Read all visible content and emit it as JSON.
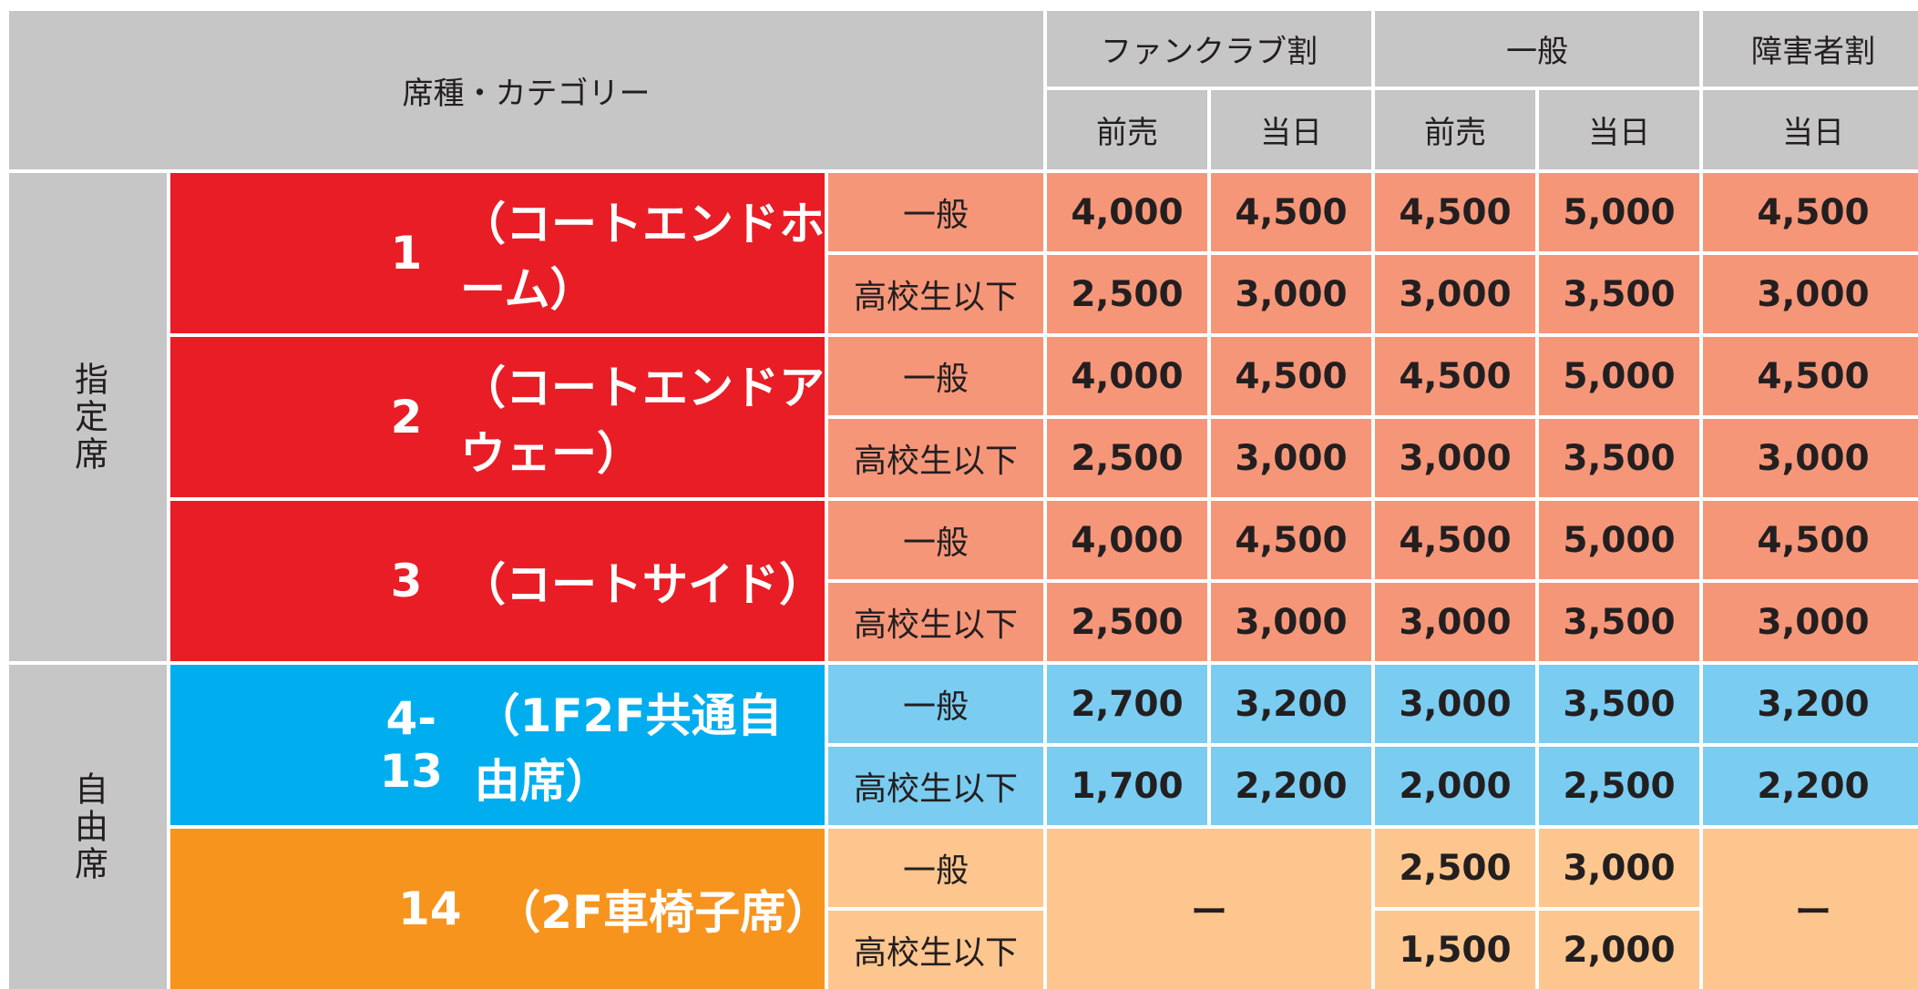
{
  "header": {
    "category": "席種・カテゴリー",
    "groups": {
      "fanclub": "ファンクラブ割",
      "general": "一般",
      "disability": "障害者割"
    },
    "sub": {
      "fc_advance": "前売",
      "fc_day": "当日",
      "gen_advance": "前売",
      "gen_day": "当日",
      "dis_day": "当日"
    }
  },
  "sections": {
    "reserved": "指定席",
    "unreserved": "自由席"
  },
  "categories": [
    {
      "num": "1",
      "label": "（コートエンドホーム）",
      "color": "#e91d25"
    },
    {
      "num": "2",
      "label": "（コートエンドアウェー）",
      "color": "#e91d25"
    },
    {
      "num": "3",
      "label": "（コートサイド）",
      "color": "#e91d25"
    },
    {
      "num": "4-13",
      "label": "（1F2F共通自由席）",
      "color": "#00aeef"
    },
    {
      "num": "14",
      "label": "（2F車椅子席）",
      "color": "#f7941d"
    }
  ],
  "sub_labels": {
    "adult": "一般",
    "student": "高校生以下"
  },
  "prices": [
    {
      "adult": [
        "4,000",
        "4,500",
        "4,500",
        "5,000",
        "4,500"
      ],
      "student": [
        "2,500",
        "3,000",
        "3,000",
        "3,500",
        "3,000"
      ]
    },
    {
      "adult": [
        "4,000",
        "4,500",
        "4,500",
        "5,000",
        "4,500"
      ],
      "student": [
        "2,500",
        "3,000",
        "3,000",
        "3,500",
        "3,000"
      ]
    },
    {
      "adult": [
        "4,000",
        "4,500",
        "4,500",
        "5,000",
        "4,500"
      ],
      "student": [
        "2,500",
        "3,000",
        "3,000",
        "3,500",
        "3,000"
      ]
    },
    {
      "adult": [
        "2,700",
        "3,200",
        "3,000",
        "3,500",
        "3,200"
      ],
      "student": [
        "1,700",
        "2,200",
        "2,000",
        "2,500",
        "2,200"
      ]
    },
    {
      "adult": [
        "",
        "",
        "2,500",
        "3,000",
        ""
      ],
      "student": [
        "",
        "",
        "1,500",
        "2,000",
        ""
      ]
    }
  ],
  "not_available": "ー",
  "colors": {
    "header_gray": "#c6c6c6",
    "salmon": "#f69679",
    "light_blue": "#7accf1",
    "peach": "#fdc68e"
  }
}
